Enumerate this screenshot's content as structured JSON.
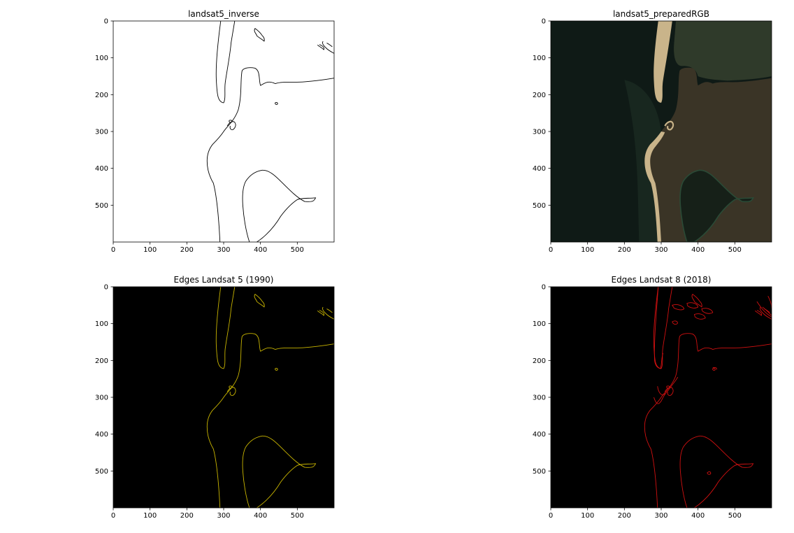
{
  "chart_data": [
    {
      "type": "image",
      "title": "landsat5_inverse",
      "style": "edges-on-white",
      "line_color": "#000000",
      "background": "#ffffff",
      "xlim": [
        0,
        600
      ],
      "ylim": [
        600,
        0
      ],
      "xticks": [
        0,
        100,
        200,
        300,
        400,
        500
      ],
      "yticks": [
        0,
        100,
        200,
        300,
        400,
        500
      ]
    },
    {
      "type": "image",
      "title": "landsat5_preparedRGB",
      "style": "satellite-rgb",
      "colors": {
        "ocean": "#0f1a16",
        "land": "#3a3426",
        "lake": "#162018",
        "sand": "#c9b48a"
      },
      "xlim": [
        0,
        600
      ],
      "ylim": [
        600,
        0
      ],
      "xticks": [
        0,
        100,
        200,
        300,
        400,
        500
      ],
      "yticks": [
        0,
        100,
        200,
        300,
        400,
        500
      ]
    },
    {
      "type": "image",
      "title": "Edges Landsat 5 (1990)",
      "style": "edges-on-black",
      "line_color": "#c8b400",
      "background": "#000000",
      "xlim": [
        0,
        600
      ],
      "ylim": [
        600,
        0
      ],
      "xticks": [
        0,
        100,
        200,
        300,
        400,
        500
      ],
      "yticks": [
        0,
        100,
        200,
        300,
        400,
        500
      ]
    },
    {
      "type": "image",
      "title": "Edges Landsat 8 (2018)",
      "style": "edges-on-black",
      "line_color": "#d01010",
      "background": "#000000",
      "xlim": [
        0,
        600
      ],
      "ylim": [
        600,
        0
      ],
      "xticks": [
        0,
        100,
        200,
        300,
        400,
        500
      ],
      "yticks": [
        0,
        100,
        200,
        300,
        400,
        500
      ]
    }
  ]
}
